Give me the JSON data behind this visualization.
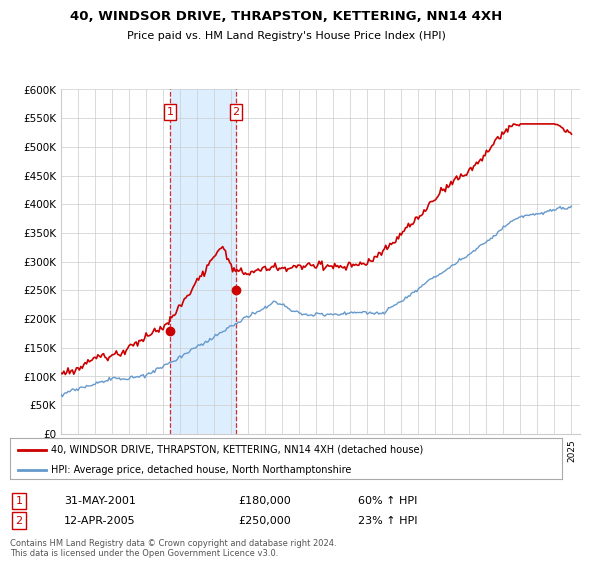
{
  "title": "40, WINDSOR DRIVE, THRAPSTON, KETTERING, NN14 4XH",
  "subtitle": "Price paid vs. HM Land Registry's House Price Index (HPI)",
  "legend_line1": "40, WINDSOR DRIVE, THRAPSTON, KETTERING, NN14 4XH (detached house)",
  "legend_line2": "HPI: Average price, detached house, North Northamptonshire",
  "transaction1_date": "31-MAY-2001",
  "transaction1_price": "£180,000",
  "transaction1_hpi": "60% ↑ HPI",
  "transaction1_x": 2001.41,
  "transaction1_y": 180000,
  "transaction2_date": "12-APR-2005",
  "transaction2_price": "£250,000",
  "transaction2_hpi": "23% ↑ HPI",
  "transaction2_x": 2005.28,
  "transaction2_y": 250000,
  "footnote": "Contains HM Land Registry data © Crown copyright and database right 2024.\nThis data is licensed under the Open Government Licence v3.0.",
  "red_color": "#cc0000",
  "blue_color": "#6699cc",
  "highlight_color": "#ddeeff",
  "background_color": "#ffffff",
  "grid_color": "#cccccc",
  "ylim": [
    0,
    600000
  ],
  "yticks": [
    0,
    50000,
    100000,
    150000,
    200000,
    250000,
    300000,
    350000,
    400000,
    450000,
    500000,
    550000,
    600000
  ],
  "ytick_labels": [
    "£0",
    "£50K",
    "£100K",
    "£150K",
    "£200K",
    "£250K",
    "£300K",
    "£350K",
    "£400K",
    "£450K",
    "£500K",
    "£550K",
    "£600K"
  ],
  "xlim_start": 1995,
  "xlim_end": 2025.5
}
